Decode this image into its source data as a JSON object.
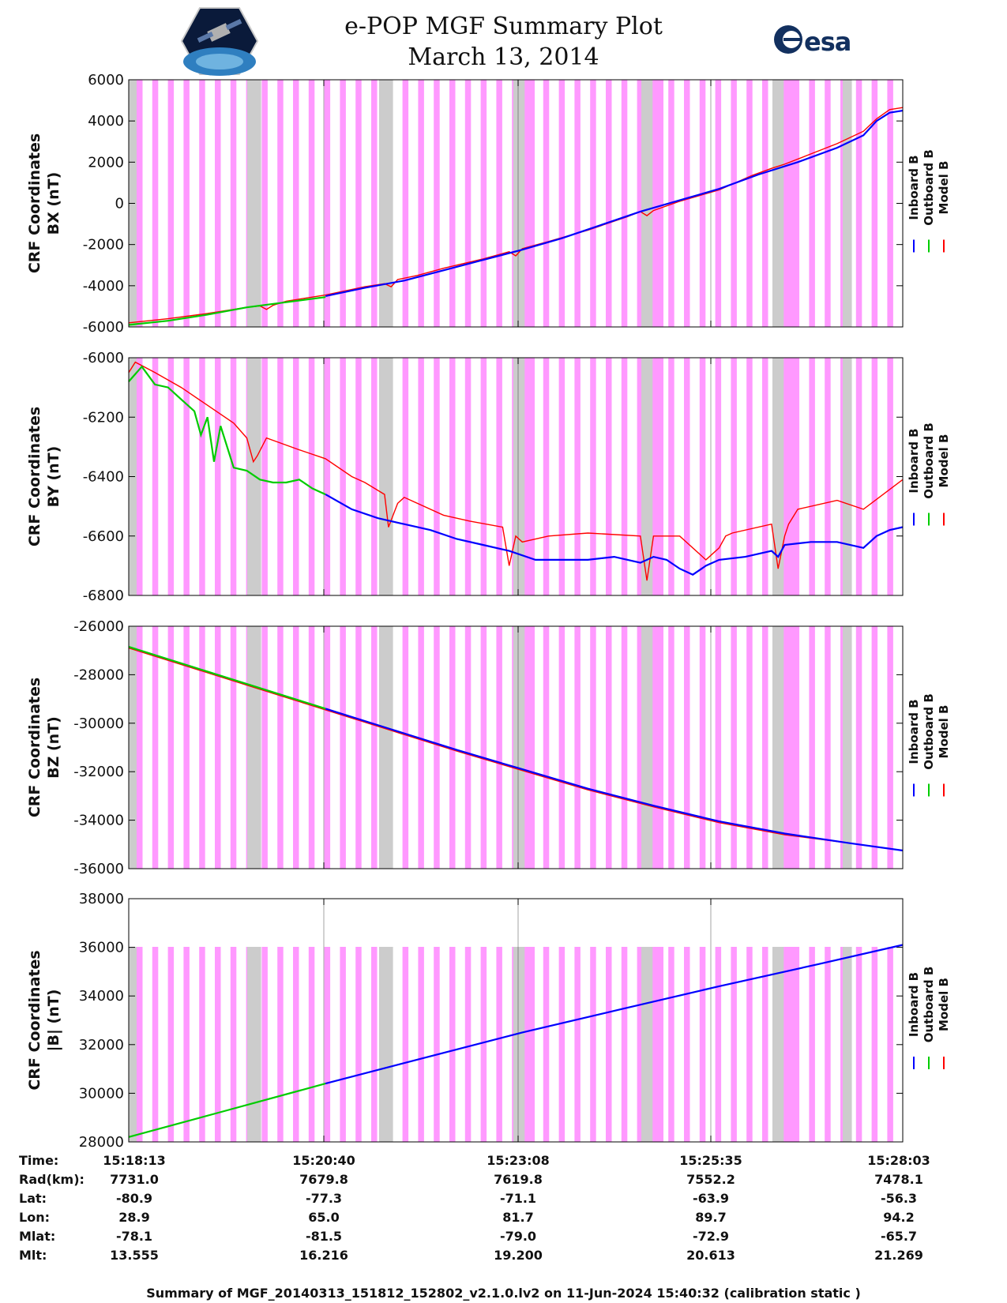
{
  "header": {
    "title": "e-POP MGF Summary Plot",
    "date": "March 13, 2014",
    "logo_left": "cassiope-mission-logo",
    "logo_right_text": "esa"
  },
  "colors": {
    "inboard": "#0000ff",
    "outboard": "#00cc00",
    "model": "#ff0000",
    "pink_band": "#ff99ff",
    "gray_band": "#cccccc"
  },
  "legend": [
    "Inboard B",
    "Outboard B",
    "Model B"
  ],
  "chart_data": [
    {
      "type": "line",
      "title": "",
      "ylabel_line1": "CRF Coordinates",
      "ylabel_line2": "BX (nT)",
      "ylim": [
        -6000,
        6000
      ],
      "yticks": [
        "6000",
        "4000",
        "2000",
        "0",
        "-2000",
        "-4000",
        "-6000"
      ],
      "x_range": [
        0,
        590
      ],
      "series": [
        {
          "name": "Model B",
          "x": [
            0,
            30,
            60,
            90,
            100,
            105,
            110,
            120,
            150,
            180,
            195,
            200,
            205,
            220,
            240,
            270,
            290,
            295,
            300,
            320,
            350,
            380,
            390,
            395,
            400,
            420,
            450,
            475,
            490,
            500,
            520,
            540,
            560,
            570,
            580,
            590
          ],
          "values": [
            -5800,
            -5600,
            -5350,
            -5050,
            -4980,
            -5150,
            -4950,
            -4750,
            -4450,
            -4050,
            -3900,
            -4050,
            -3700,
            -3500,
            -3150,
            -2700,
            -2350,
            -2550,
            -2200,
            -1850,
            -1300,
            -650,
            -400,
            -600,
            -350,
            100,
            650,
            1350,
            1700,
            1900,
            2400,
            2900,
            3500,
            4100,
            4550,
            4650
          ]
        },
        {
          "name": "Outboard B",
          "x": [
            0,
            30,
            60,
            90,
            120,
            150
          ],
          "values": [
            -5900,
            -5700,
            -5400,
            -5050,
            -4800,
            -4550
          ]
        },
        {
          "name": "Inboard B",
          "x": [
            150,
            180,
            210,
            240,
            270,
            300,
            330,
            360,
            390,
            420,
            450,
            480,
            510,
            540,
            560,
            570,
            580,
            590
          ],
          "values": [
            -4500,
            -4100,
            -3750,
            -3250,
            -2750,
            -2250,
            -1700,
            -1050,
            -400,
            150,
            700,
            1400,
            2000,
            2700,
            3300,
            4000,
            4400,
            4500
          ]
        }
      ]
    },
    {
      "type": "line",
      "title": "",
      "ylabel_line1": "CRF Coordinates",
      "ylabel_line2": "BY (nT)",
      "ylim": [
        -6800,
        -6000
      ],
      "yticks": [
        "-6000",
        "-6200",
        "-6400",
        "-6600",
        "-6800"
      ],
      "x_range": [
        0,
        590
      ],
      "series": [
        {
          "name": "Model B",
          "x": [
            0,
            5,
            20,
            40,
            60,
            80,
            90,
            95,
            98,
            105,
            130,
            150,
            170,
            180,
            195,
            198,
            205,
            210,
            240,
            260,
            285,
            290,
            295,
            300,
            320,
            350,
            390,
            395,
            400,
            420,
            440,
            450,
            455,
            460,
            490,
            495,
            500,
            503,
            510,
            540,
            560,
            590
          ],
          "values": [
            -6050,
            -6015,
            -6050,
            -6100,
            -6160,
            -6220,
            -6270,
            -6350,
            -6330,
            -6270,
            -6310,
            -6340,
            -6400,
            -6420,
            -6460,
            -6570,
            -6490,
            -6470,
            -6530,
            -6550,
            -6570,
            -6700,
            -6600,
            -6620,
            -6600,
            -6590,
            -6600,
            -6750,
            -6600,
            -6600,
            -6680,
            -6640,
            -6600,
            -6590,
            -6560,
            -6710,
            -6600,
            -6560,
            -6510,
            -6480,
            -6510,
            -6410
          ]
        },
        {
          "name": "Outboard B",
          "x": [
            0,
            10,
            20,
            30,
            40,
            50,
            55,
            60,
            65,
            70,
            80,
            90,
            100,
            110,
            120,
            130,
            140,
            150
          ],
          "values": [
            -6080,
            -6030,
            -6090,
            -6100,
            -6140,
            -6180,
            -6260,
            -6200,
            -6350,
            -6230,
            -6370,
            -6380,
            -6410,
            -6420,
            -6420,
            -6410,
            -6440,
            -6460
          ]
        },
        {
          "name": "Inboard B",
          "x": [
            150,
            170,
            190,
            210,
            230,
            250,
            270,
            290,
            310,
            330,
            350,
            370,
            390,
            400,
            410,
            420,
            430,
            440,
            450,
            470,
            490,
            495,
            500,
            520,
            540,
            560,
            570,
            580,
            590
          ],
          "values": [
            -6460,
            -6510,
            -6540,
            -6560,
            -6580,
            -6610,
            -6630,
            -6650,
            -6680,
            -6680,
            -6680,
            -6670,
            -6690,
            -6670,
            -6680,
            -6710,
            -6730,
            -6700,
            -6680,
            -6670,
            -6650,
            -6670,
            -6630,
            -6620,
            -6620,
            -6640,
            -6600,
            -6580,
            -6570
          ]
        }
      ]
    },
    {
      "type": "line",
      "title": "",
      "ylabel_line1": "CRF Coordinates",
      "ylabel_line2": "BZ (nT)",
      "ylim": [
        -36000,
        -26000
      ],
      "yticks": [
        "-26000",
        "-28000",
        "-30000",
        "-32000",
        "-34000",
        "-36000"
      ],
      "x_range": [
        0,
        590
      ],
      "series": [
        {
          "name": "Model B",
          "x": [
            0,
            50,
            100,
            150,
            200,
            250,
            300,
            350,
            400,
            450,
            500,
            550,
            590
          ],
          "values": [
            -26900,
            -27750,
            -28600,
            -29450,
            -30300,
            -31150,
            -31950,
            -32750,
            -33450,
            -34100,
            -34600,
            -34950,
            -35250
          ]
        },
        {
          "name": "Outboard B",
          "x": [
            0,
            50,
            100,
            150
          ],
          "values": [
            -26850,
            -27700,
            -28550,
            -29400
          ]
        },
        {
          "name": "Inboard B",
          "x": [
            150,
            200,
            250,
            300,
            350,
            400,
            450,
            500,
            550,
            590
          ],
          "values": [
            -29400,
            -30250,
            -31100,
            -31900,
            -32700,
            -33400,
            -34050,
            -34550,
            -34950,
            -35250
          ]
        }
      ]
    },
    {
      "type": "line",
      "title": "",
      "ylabel_line1": "CRF Coordinates",
      "ylabel_line2": "|B| (nT)",
      "ylim": [
        28000,
        38000
      ],
      "yticks": [
        "38000",
        "36000",
        "34000",
        "32000",
        "30000",
        "28000"
      ],
      "x_range": [
        0,
        590
      ],
      "series": [
        {
          "name": "Model B",
          "x": [
            0,
            75,
            150,
            225,
            300,
            375,
            450,
            525,
            590
          ],
          "values": [
            28200,
            29300,
            30400,
            31450,
            32500,
            33450,
            34400,
            35300,
            36100
          ]
        },
        {
          "name": "Outboard B",
          "x": [
            0,
            75,
            150
          ],
          "values": [
            28200,
            29300,
            30400
          ]
        },
        {
          "name": "Inboard B",
          "x": [
            150,
            225,
            300,
            375,
            450,
            525,
            590
          ],
          "values": [
            30400,
            31450,
            32500,
            33450,
            34400,
            35300,
            36100
          ]
        }
      ]
    }
  ],
  "info_table": {
    "labels": [
      "Time:",
      "Rad(km):",
      "Lat:",
      "Lon:",
      "Mlat:",
      "Mlt:"
    ],
    "columns": [
      [
        "15:18:13",
        "7731.0",
        "-80.9",
        "28.9",
        "-78.1",
        "13.555"
      ],
      [
        "15:20:40",
        "7679.8",
        "-77.3",
        "65.0",
        "-81.5",
        "16.216"
      ],
      [
        "15:23:08",
        "7619.8",
        "-71.1",
        "81.7",
        "-79.0",
        "19.200"
      ],
      [
        "15:25:35",
        "7552.2",
        "-63.9",
        "89.7",
        "-72.9",
        "20.613"
      ],
      [
        "15:28:03",
        "7478.1",
        "-56.3",
        "94.2",
        "-65.7",
        "21.269"
      ]
    ]
  },
  "footer": "Summary of MGF_20140313_151812_152802_v2.1.0.lv2 on 11-Jun-2024 15:40:32 (calibration static )"
}
